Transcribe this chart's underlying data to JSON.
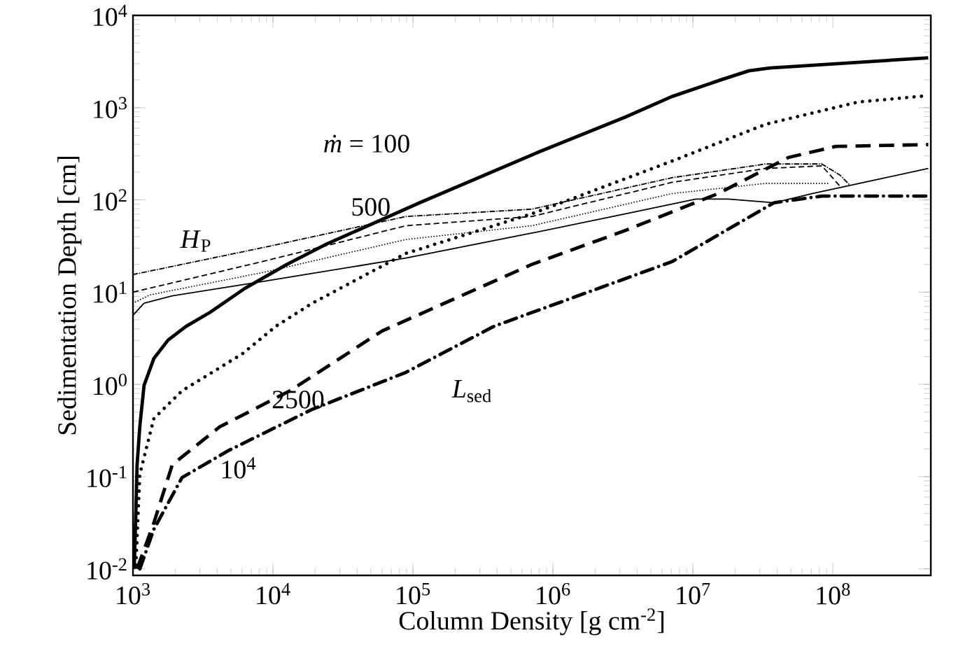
{
  "chart_data": {
    "type": "line",
    "xlabel": "Column Density [g cm$^{-2}$]",
    "ylabel": "Sedimentation Depth [cm]",
    "log": "xy",
    "xlim": [
      1000,
      500000000
    ],
    "ylim": [
      0.0085,
      10000
    ],
    "xticks": [
      {
        "value": 1000,
        "label": "10$^{3}$"
      },
      {
        "value": 10000,
        "label": "10$^{4}$"
      },
      {
        "value": 100000,
        "label": "10$^{5}$"
      },
      {
        "value": 1000000,
        "label": "10$^{6}$"
      },
      {
        "value": 10000000,
        "label": "10$^{7}$"
      },
      {
        "value": 100000000,
        "label": "10$^{8}$"
      }
    ],
    "yticks": [
      {
        "value": 0.01,
        "label": "10$^{-2}$"
      },
      {
        "value": 0.1,
        "label": "10$^{-1}$"
      },
      {
        "value": 1,
        "label": "10$^{0}$"
      },
      {
        "value": 10,
        "label": "10$^{1}$"
      },
      {
        "value": 100,
        "label": "10$^{2}$"
      },
      {
        "value": 1000,
        "label": "10$^{3}$"
      },
      {
        "value": 10000,
        "label": "10$^{4}$"
      }
    ],
    "series": [
      {
        "color": "#000000",
        "line_style": "solid",
        "x": [
          1020,
          1050,
          1070,
          1120,
          1200,
          1410,
          1780,
          2400,
          3550,
          6310,
          12600,
          24000,
          112000,
          794000,
          3310000,
          7080000,
          15800000,
          25100000,
          35500000,
          479000000
        ],
        "values": [
          0.01,
          0.0437,
          0.135,
          0.355,
          0.977,
          1.91,
          3.02,
          4.27,
          6.03,
          11.0,
          20.0,
          33.1,
          93.3,
          331,
          794,
          1320,
          2000,
          2510,
          2690,
          3470
        ]
      },
      {
        "color": "#000000",
        "line_style": "dotted",
        "x": [
          1050,
          1120,
          1410,
          2240,
          6030,
          10500,
          19100,
          89100,
          708000,
          7080000,
          33100000,
          151000000,
          479000000
        ],
        "values": [
          0.011,
          0.107,
          0.427,
          0.851,
          2.14,
          4.27,
          7.59,
          26.3,
          70.8,
          263,
          661,
          1150,
          1350
        ]
      },
      {
        "color": "#000000",
        "line_style": "dashed",
        "x": [
          1070,
          1410,
          1910,
          4170,
          13200,
          60300,
          708000,
          3310000,
          15100000,
          47900000,
          105000000,
          479000000
        ],
        "values": [
          0.01,
          0.0316,
          0.135,
          0.347,
          0.851,
          3.8,
          20,
          46.8,
          117,
          288,
          380,
          398
        ]
      },
      {
        "color": "#000000",
        "line_style": "dashdot",
        "x": [
          1120,
          1410,
          2240,
          4790,
          19100,
          89100,
          380000,
          7080000,
          38000000,
          83200000,
          479000000
        ],
        "values": [
          0.01,
          0.0269,
          0.0977,
          0.191,
          0.537,
          1.35,
          4.27,
          21.4,
          93.3,
          110,
          110
        ]
      },
      {
        "color": "#000000",
        "line_style": "solid",
        "x": [
          1000,
          1200,
          1910,
          8910,
          89100,
          708000,
          3310000,
          10500000,
          17800000,
          38000000,
          70800000,
          479000000
        ],
        "values": [
          5.62,
          7.59,
          9.12,
          13.2,
          23.4,
          43.7,
          70.8,
          102,
          102,
          93.3,
          117,
          219
        ]
      },
      {
        "color": "#000000",
        "line_style": "dotted",
        "x": [
          1000,
          1320,
          8910,
          89100,
          708000,
          7080000,
          33100000,
          95500000
        ],
        "values": [
          7.59,
          9.33,
          16.6,
          37.2,
          52.5,
          117,
          151,
          151
        ]
      },
      {
        "color": "#000000",
        "line_style": "dashed",
        "x": [
          1000,
          8910,
          89100,
          708000,
          7080000,
          33100000,
          83200000,
          95500000,
          112000000
        ],
        "values": [
          10,
          21.9,
          52.5,
          66.1,
          155,
          219,
          234,
          186,
          141
        ]
      },
      {
        "color": "#000000",
        "line_style": "dashdot",
        "x": [
          1000,
          8910,
          89100,
          708000,
          7080000,
          33100000,
          83200000,
          112000000,
          132000000
        ],
        "values": [
          15.5,
          30.9,
          66.1,
          79.4,
          174,
          245,
          245,
          186,
          145
        ]
      }
    ],
    "annotations": [
      "*ṁ* = 100",
      "500",
      "2500",
      "10$^{4}$",
      "*L*$_{sed}$",
      "*H*$_{P}$"
    ]
  }
}
